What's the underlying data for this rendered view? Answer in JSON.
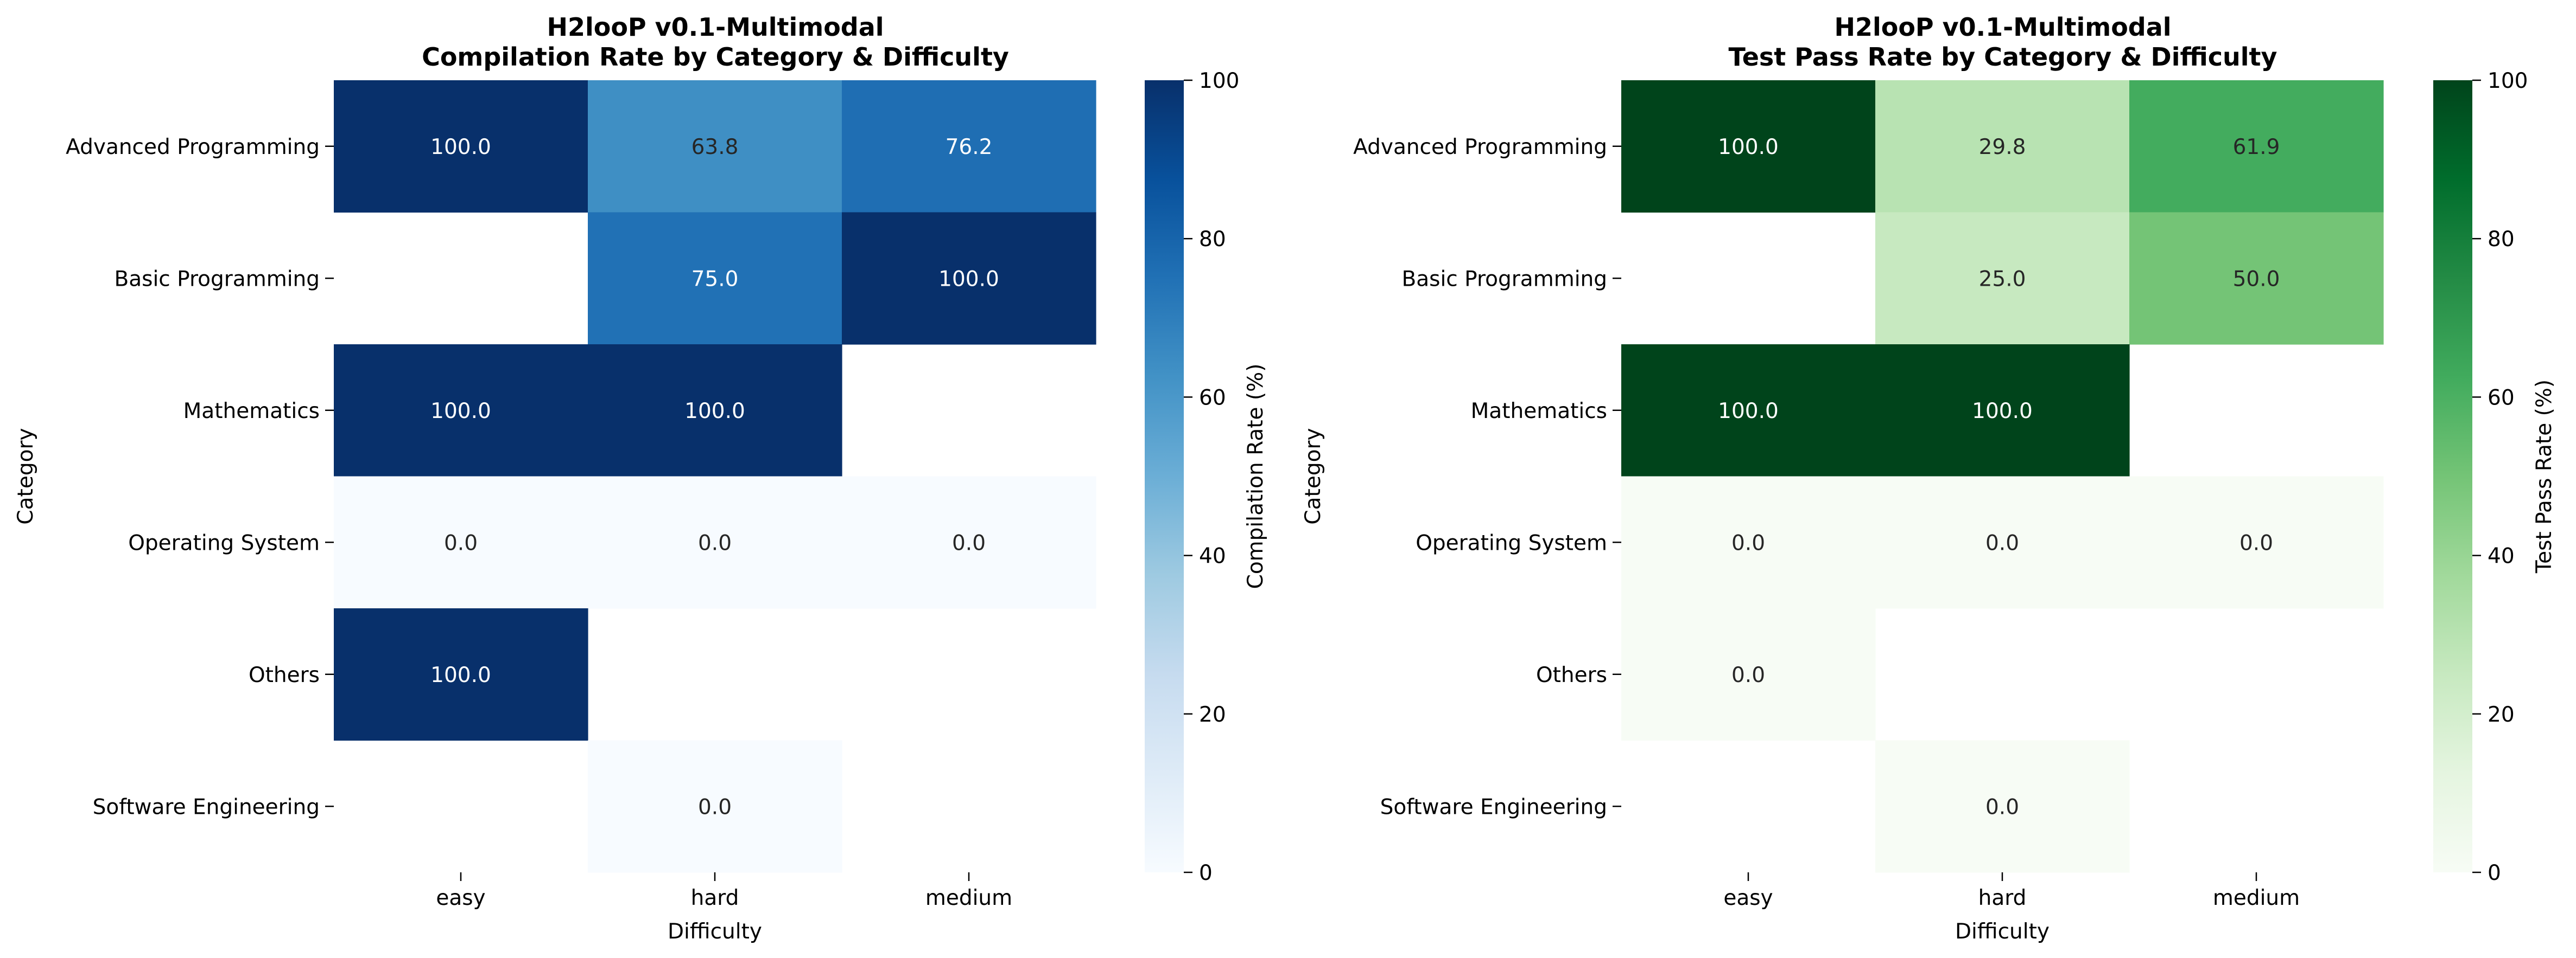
{
  "chart_data": [
    {
      "type": "heatmap",
      "title": "H2looP v0.1-Multimodal",
      "subtitle": "Compilation Rate by Category & Difficulty",
      "xlabel": "Difficulty",
      "ylabel": "Category",
      "x_categories": [
        "easy",
        "hard",
        "medium"
      ],
      "y_categories": [
        "Advanced Programming",
        "Basic Programming",
        "Mathematics",
        "Operating System",
        "Others",
        "Software Engineering"
      ],
      "values": [
        [
          100.0,
          63.8,
          76.2
        ],
        [
          null,
          75.0,
          100.0
        ],
        [
          100.0,
          100.0,
          null
        ],
        [
          0.0,
          0.0,
          0.0
        ],
        [
          100.0,
          null,
          null
        ],
        [
          null,
          0.0,
          null
        ]
      ],
      "cell_labels": [
        [
          "100.0",
          "63.8",
          "76.2"
        ],
        [
          "",
          "75.0",
          "100.0"
        ],
        [
          "100.0",
          "100.0",
          ""
        ],
        [
          "0.0",
          "0.0",
          "0.0"
        ],
        [
          "100.0",
          "",
          ""
        ],
        [
          "",
          "0.0",
          ""
        ]
      ],
      "colormap": "Blues",
      "colorbar_label": "Compilation Rate (%)",
      "colorbar_range": [
        0,
        100
      ],
      "colorbar_ticks": [
        "0",
        "20",
        "40",
        "60",
        "80",
        "100"
      ]
    },
    {
      "type": "heatmap",
      "title": "H2looP v0.1-Multimodal",
      "subtitle": "Test Pass Rate by Category & Difficulty",
      "xlabel": "Difficulty",
      "ylabel": "Category",
      "x_categories": [
        "easy",
        "hard",
        "medium"
      ],
      "y_categories": [
        "Advanced Programming",
        "Basic Programming",
        "Mathematics",
        "Operating System",
        "Others",
        "Software Engineering"
      ],
      "values": [
        [
          100.0,
          29.8,
          61.9
        ],
        [
          null,
          25.0,
          50.0
        ],
        [
          100.0,
          100.0,
          null
        ],
        [
          0.0,
          0.0,
          0.0
        ],
        [
          0.0,
          null,
          null
        ],
        [
          null,
          0.0,
          null
        ]
      ],
      "cell_labels": [
        [
          "100.0",
          "29.8",
          "61.9"
        ],
        [
          "",
          "25.0",
          "50.0"
        ],
        [
          "100.0",
          "100.0",
          ""
        ],
        [
          "0.0",
          "0.0",
          "0.0"
        ],
        [
          "0.0",
          "",
          ""
        ],
        [
          "",
          "0.0",
          ""
        ]
      ],
      "colormap": "Greens",
      "colorbar_label": "Test Pass Rate (%)",
      "colorbar_range": [
        0,
        100
      ],
      "colorbar_ticks": [
        "0",
        "20",
        "40",
        "60",
        "80",
        "100"
      ]
    }
  ]
}
